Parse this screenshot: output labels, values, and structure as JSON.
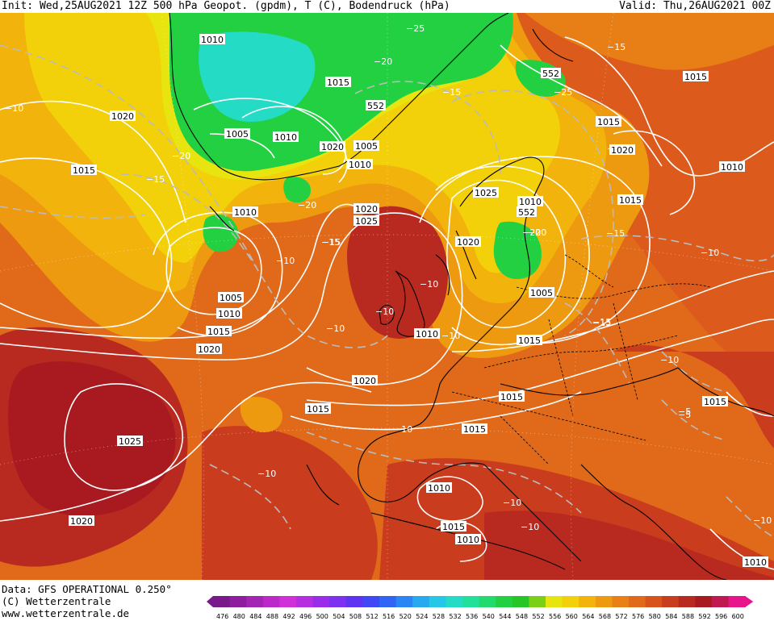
{
  "header": {
    "left": "Init: Wed,25AUG2021 12Z 500 hPa Geopot. (gpdm), T (C), Bodendruck (hPa)",
    "right": "Valid: Thu,26AUG2021 00Z"
  },
  "footer": {
    "source": "Data: GFS OPERATIONAL 0.250°",
    "copyright": "(C) Wetterzentrale",
    "website": "www.wetterzentrale.de"
  },
  "scale": {
    "values": [
      "476",
      "480",
      "484",
      "488",
      "492",
      "496",
      "500",
      "504",
      "508",
      "512",
      "516",
      "520",
      "524",
      "528",
      "532",
      "536",
      "540",
      "544",
      "548",
      "552",
      "556",
      "560",
      "564",
      "568",
      "572",
      "576",
      "580",
      "584",
      "588",
      "592",
      "596",
      "600"
    ],
    "colors": [
      "#7a1a8a",
      "#8e1e9e",
      "#a424b4",
      "#bb2ac8",
      "#cf30d8",
      "#b52ee0",
      "#9a2cea",
      "#7d30f0",
      "#5e34f2",
      "#3f48f4",
      "#2f64f4",
      "#2a86f2",
      "#28a8ee",
      "#26c6e6",
      "#24dcc6",
      "#22e09a",
      "#22da6e",
      "#22d042",
      "#26c626",
      "#7ad014",
      "#e8e410",
      "#f2d00a",
      "#f2b40c",
      "#ee9a10",
      "#e88016",
      "#e2681a",
      "#d8521c",
      "#ca3c1e",
      "#b82a20",
      "#a81a20",
      "#c01850",
      "#e8148c"
    ]
  },
  "map": {
    "pressure_labels": [
      "1010",
      "1015",
      "1020",
      "1005",
      "1010",
      "1020",
      "1005",
      "1010",
      "1015",
      "1010",
      "1020",
      "1025",
      "1005",
      "1010",
      "1015",
      "1020",
      "1025",
      "1020",
      "1015",
      "1025",
      "1020",
      "1010",
      "1005",
      "1015",
      "1015",
      "1020",
      "1015",
      "1015",
      "1010",
      "1015",
      "1020",
      "1010",
      "1015",
      "1010",
      "1015",
      "1015",
      "1010",
      "1010"
    ],
    "height_labels": [
      "552",
      "552",
      "552"
    ],
    "temp_labels": [
      "−25",
      "−20",
      "−20",
      "−15",
      "−20",
      "−15",
      "−25",
      "−20",
      "−15",
      "−15",
      "−15",
      "−15",
      "−10",
      "−20",
      "−10",
      "−15",
      "−10",
      "−10",
      "−10",
      "−15",
      "−10",
      "−10",
      "−10",
      "−10",
      "−5",
      "−10",
      "−10",
      "−10",
      "−10",
      "−5",
      "−10"
    ]
  }
}
